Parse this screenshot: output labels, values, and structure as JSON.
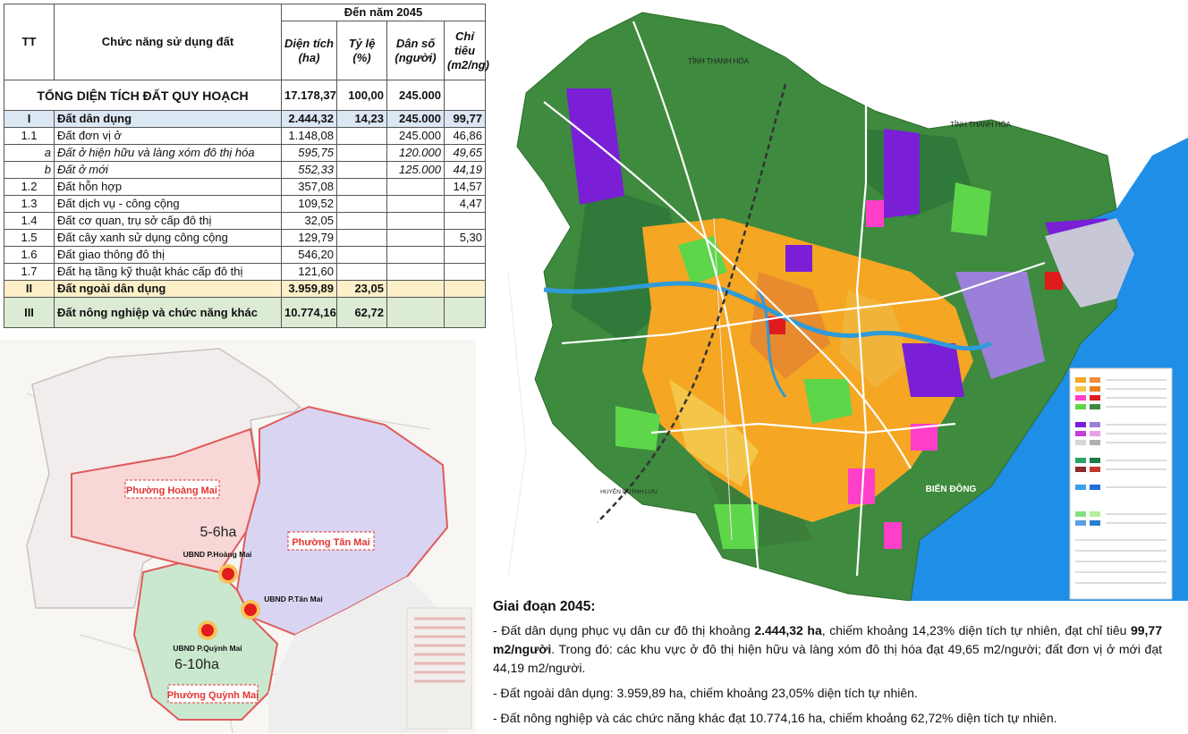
{
  "table": {
    "header": {
      "tt": "TT",
      "function": "Chức năng sử dụng đất",
      "period": "Đến năm 2045",
      "area": "Diện tích (ha)",
      "ratio": "Tỷ lệ (%)",
      "population": "Dân số (người)",
      "indicator": "Chỉ tiêu (m2/ng)"
    },
    "total": {
      "label": "TỔNG DIỆN TÍCH ĐẤT QUY HOẠCH",
      "area": "17.178,37",
      "ratio": "100,00",
      "population": "245.000"
    },
    "rows": [
      {
        "tt": "I",
        "name": "Đất dân dụng",
        "area": "2.444,32",
        "ratio": "14,23",
        "population": "245.000",
        "indicator": "99,77"
      },
      {
        "tt": "1.1",
        "name": "Đất đơn vị ở",
        "area": "1.148,08",
        "ratio": "",
        "population": "245.000",
        "indicator": "46,86"
      },
      {
        "tt": "a",
        "name": "Đất ở hiện hữu và làng xóm đô thị hóa",
        "area": "595,75",
        "ratio": "",
        "population": "120.000",
        "indicator": "49,65"
      },
      {
        "tt": "b",
        "name": "Đất ở mới",
        "area": "552,33",
        "ratio": "",
        "population": "125.000",
        "indicator": "44,19"
      },
      {
        "tt": "1.2",
        "name": "Đất hỗn hợp",
        "area": "357,08",
        "ratio": "",
        "population": "",
        "indicator": "14,57"
      },
      {
        "tt": "1.3",
        "name": "Đất dịch vụ - công cộng",
        "area": "109,52",
        "ratio": "",
        "population": "",
        "indicator": "4,47"
      },
      {
        "tt": "1.4",
        "name": "Đất cơ quan, trụ sở cấp đô thị",
        "area": "32,05",
        "ratio": "",
        "population": "",
        "indicator": ""
      },
      {
        "tt": "1.5",
        "name": "Đất cây xanh sử dụng công cộng",
        "area": "129,79",
        "ratio": "",
        "population": "",
        "indicator": "5,30"
      },
      {
        "tt": "1.6",
        "name": "Đất giao thông đô thị",
        "area": "546,20",
        "ratio": "",
        "population": "",
        "indicator": ""
      },
      {
        "tt": "1.7",
        "name": "Đất hạ tầng kỹ thuật khác cấp đô thị",
        "area": "121,60",
        "ratio": "",
        "population": "",
        "indicator": ""
      },
      {
        "tt": "II",
        "name": "Đất ngoài dân dụng",
        "area": "3.959,89",
        "ratio": "23,05",
        "population": "",
        "indicator": ""
      },
      {
        "tt": "III",
        "name": "Đất nông nghiệp và chức năng khác",
        "area": "10.774,16",
        "ratio": "62,72",
        "population": "",
        "indicator": ""
      }
    ]
  },
  "small_map": {
    "wards": {
      "hoang_mai": "Phường Hoàng Mai",
      "tan_mai": "Phường Tân Mai",
      "quynh_mai": "Phường Quỳnh Mai"
    },
    "offices": {
      "hoang_mai": "UBND P.Hoàng Mai",
      "tan_mai": "UBND P.Tân Mai",
      "quynh_mai": "UBND P.Quỳnh Mai"
    },
    "area_notes": {
      "north": "5-6ha",
      "south": "6-10ha"
    },
    "colors": {
      "hoang_mai": "#f8d7d7",
      "tan_mai": "#d9d4f2",
      "quynh_mai": "#c9e8cf",
      "marker": "#e21d1d",
      "label": "#e33333"
    }
  },
  "big_map": {
    "labels": {
      "thanh_hoa": "TỈNH THANH HÓA",
      "quynh_luu_n": "HUYỆN QUỲNH LƯU",
      "quynh_luu_s": "HUYỆN QUỲNH LƯU",
      "sea": "BIỂN ĐÔNG",
      "thanh_hoa_e": "TỈNH THANH HÓA"
    },
    "colors": {
      "sea": "#1e8ee6",
      "green": "#3e8a3e",
      "residential": "#f5a623",
      "industrial": "#7a1fd6",
      "park": "#5ed64a",
      "pink": "#ff3fc8"
    }
  },
  "description": {
    "heading": "Giai đoạn 2045:",
    "p1_a": "- Đất dân dụng phục vụ dân cư đô thị khoảng ",
    "p1_b": "2.444,32 ha",
    "p1_c": ", chiếm khoảng 14,23% diện tích tự nhiên, đạt chỉ tiêu ",
    "p1_d": "99,77 m2/người",
    "p1_e": ". Trong đó: các khu vực ở đô thị hiện hữu và làng xóm đô thị hóa đạt 49,65 m2/người; đất đơn vị ở mới đạt 44,19 m2/người.",
    "p2": "- Đất ngoài dân dụng: 3.959,89 ha, chiếm khoảng 23,05% diện tích tự nhiên.",
    "p3": "- Đất nông nghiệp và các chức năng khác đạt 10.774,16 ha, chiếm khoảng 62,72% diện tích tự nhiên."
  }
}
